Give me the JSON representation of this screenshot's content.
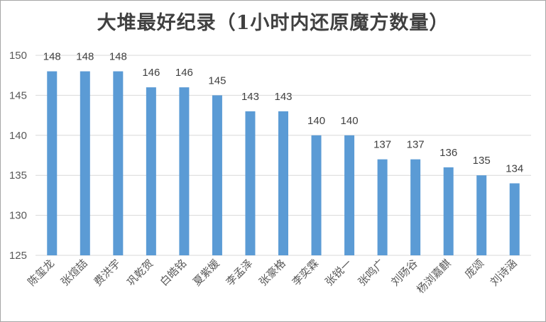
{
  "chart_data": {
    "type": "bar",
    "title": "大堆最好纪录（1小时内还原魔方数量）",
    "xlabel": "",
    "ylabel": "",
    "ylim": [
      125,
      150
    ],
    "yticks": [
      125,
      130,
      135,
      140,
      145,
      150
    ],
    "grid": true,
    "bar_color": "#5b9bd5",
    "categories": [
      "陈玺龙",
      "张煊喆",
      "费洪宇",
      "巩乾贺",
      "白皓铭",
      "夏紫媛",
      "李孟泽",
      "张豪格",
      "李奕霖",
      "张锐一",
      "张鸣广",
      "刘旸谷",
      "杨浏嘉麒",
      "庞颂",
      "刘诗涵"
    ],
    "values": [
      148,
      148,
      148,
      146,
      146,
      145,
      143,
      143,
      140,
      140,
      137,
      137,
      136,
      135,
      134
    ]
  }
}
